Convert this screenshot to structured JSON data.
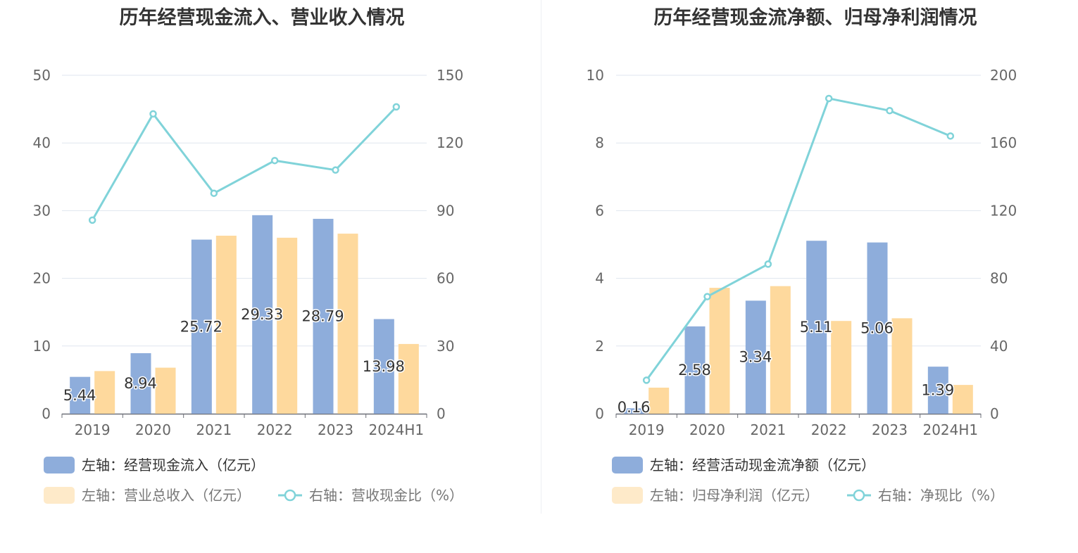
{
  "chart_data": [
    {
      "type": "bar",
      "title": "历年经营现金流入、营业收入情况",
      "categories": [
        "2019",
        "2020",
        "2021",
        "2022",
        "2023",
        "2024H1"
      ],
      "y_left": {
        "min": 0,
        "max": 50,
        "ticks": [
          "0",
          "10",
          "20",
          "30",
          "40",
          "50"
        ]
      },
      "y_right": {
        "min": 0,
        "max": 150,
        "ticks": [
          "0",
          "30",
          "60",
          "90",
          "120",
          "150"
        ]
      },
      "grid": true,
      "legend_position": "bottom",
      "series": [
        {
          "name": "左轴：经营现金流入（亿元）",
          "kind": "bar",
          "axis": "left",
          "color": "#8eaddb",
          "values": [
            5.44,
            8.94,
            25.72,
            29.33,
            28.79,
            13.98
          ],
          "labels": [
            "5.44",
            "8.94",
            "25.72",
            "29.33",
            "28.79",
            "13.98"
          ]
        },
        {
          "name": "左轴：营业总收入（亿元）",
          "kind": "bar",
          "axis": "left",
          "color": "#fed99d",
          "values": [
            6.3,
            6.8,
            26.3,
            26.0,
            26.6,
            10.3
          ]
        },
        {
          "name": "右轴：营收现金比（%）",
          "kind": "line",
          "axis": "right",
          "color": "#80d3d9",
          "values": [
            85.8,
            132.9,
            97.7,
            112.2,
            108.0,
            136.0
          ]
        }
      ]
    },
    {
      "type": "bar",
      "title": "历年经营现金流净额、归母净利润情况",
      "categories": [
        "2019",
        "2020",
        "2021",
        "2022",
        "2023",
        "2024H1"
      ],
      "y_left": {
        "min": 0,
        "max": 10,
        "ticks": [
          "0",
          "2",
          "4",
          "6",
          "8",
          "10"
        ]
      },
      "y_right": {
        "min": 0,
        "max": 200,
        "ticks": [
          "0",
          "40",
          "80",
          "120",
          "160",
          "200"
        ]
      },
      "grid": true,
      "legend_position": "bottom",
      "series": [
        {
          "name": "左轴：经营活动现金流净额（亿元）",
          "kind": "bar",
          "axis": "left",
          "color": "#8eaddb",
          "values": [
            0.16,
            2.58,
            3.34,
            5.11,
            5.06,
            1.39
          ],
          "labels": [
            "0.16",
            "2.58",
            "3.34",
            "5.11",
            "5.06",
            "1.39"
          ]
        },
        {
          "name": "左轴：归母净利润（亿元）",
          "kind": "bar",
          "axis": "left",
          "color": "#fed99d",
          "values": [
            0.77,
            3.72,
            3.77,
            2.74,
            2.82,
            0.85
          ]
        },
        {
          "name": "右轴：净现比（%）",
          "kind": "line",
          "axis": "right",
          "color": "#80d3d9",
          "values": [
            19.8,
            69.2,
            88.4,
            186.3,
            179.1,
            164.1
          ]
        }
      ]
    }
  ]
}
